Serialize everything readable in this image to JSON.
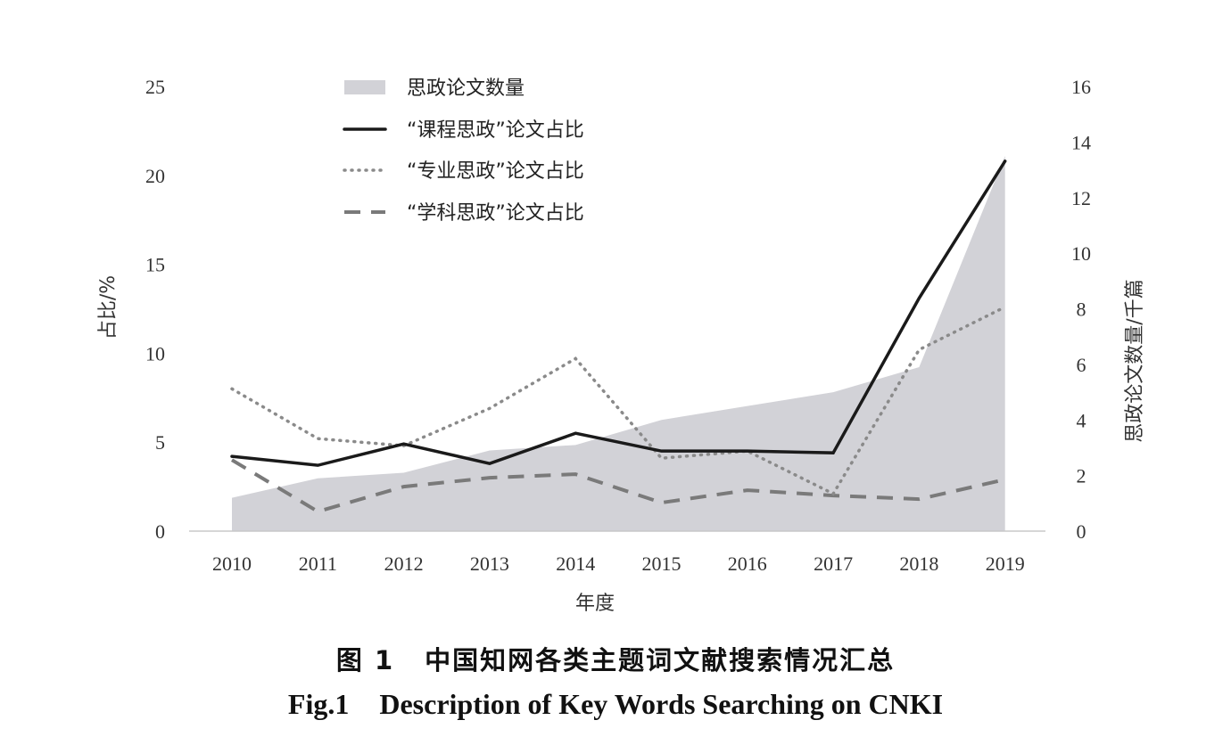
{
  "chart_data": {
    "type": "line",
    "categories": [
      "2010",
      "2011",
      "2012",
      "2013",
      "2014",
      "2015",
      "2016",
      "2017",
      "2018",
      "2019"
    ],
    "xlabel": "年度",
    "ylabel_left": "占比/%",
    "ylabel_right": "思政论文数量/千篇",
    "ylim_left": [
      0,
      25
    ],
    "ylim_right": [
      0,
      16
    ],
    "yticks_left": [
      "0",
      "5",
      "10",
      "15",
      "20",
      "25"
    ],
    "yticks_right": [
      "0",
      "2",
      "4",
      "6",
      "8",
      "10",
      "12",
      "14",
      "16"
    ],
    "grid": false,
    "legend_position": "top-left",
    "area_series": {
      "name": "思政论文数量",
      "axis": "right",
      "color": "#d2d2d7",
      "values": [
        1.2,
        1.9,
        2.1,
        2.9,
        3.1,
        4.0,
        4.5,
        5.0,
        5.9,
        13.5
      ]
    },
    "series": [
      {
        "name": "“课程思政”论文占比",
        "axis": "left",
        "style": "solid",
        "color": "#1a1a1a",
        "values": [
          4.2,
          3.7,
          4.9,
          3.8,
          5.5,
          4.5,
          4.5,
          4.4,
          13.1,
          20.8
        ]
      },
      {
        "name": "“专业思政”论文占比",
        "axis": "left",
        "style": "dotted",
        "color": "#8a8a8a",
        "values": [
          8.0,
          5.2,
          4.8,
          6.9,
          9.7,
          4.1,
          4.5,
          2.1,
          10.2,
          12.6
        ]
      },
      {
        "name": "“学科思政”论文占比",
        "axis": "left",
        "style": "dashed",
        "color": "#7a7a7a",
        "values": [
          4.0,
          1.1,
          2.5,
          3.0,
          3.2,
          1.6,
          2.3,
          2.0,
          1.8,
          2.9
        ]
      }
    ]
  },
  "caption": {
    "cn_label": "图 1",
    "cn_text": "中国知网各类主题词文献搜索情况汇总",
    "en_label": "Fig.1",
    "en_text": "Description of Key Words Searching on CNKI"
  }
}
